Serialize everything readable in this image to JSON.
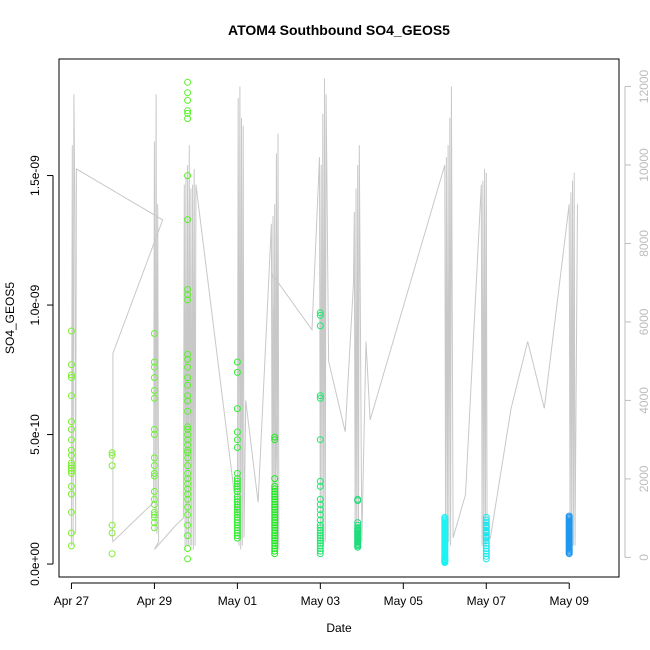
{
  "chart_data": {
    "type": "scatter",
    "title": "ATOM4 Southbound SO4_GEOS5",
    "xlabel": "Date",
    "ylabel": "SO4_GEOS5",
    "x_range_days": [
      -0.3,
      13.2
    ],
    "ylim": [
      -5e-11,
      1.95e-09
    ],
    "y2lim": [
      -500,
      12700
    ],
    "x_ticks": [
      {
        "day": 0,
        "label": "Apr 27"
      },
      {
        "day": 2,
        "label": "Apr 29"
      },
      {
        "day": 4,
        "label": "May 01"
      },
      {
        "day": 6,
        "label": "May 03"
      },
      {
        "day": 8,
        "label": "May 05"
      },
      {
        "day": 10,
        "label": "May 07"
      },
      {
        "day": 12,
        "label": "May 09"
      }
    ],
    "y_ticks": [
      {
        "value": 0,
        "label": "0.0e+00"
      },
      {
        "value": 5e-10,
        "label": "5.0e-10"
      },
      {
        "value": 1e-09,
        "label": "1.0e-09"
      },
      {
        "value": 1.5e-09,
        "label": "1.5e-09"
      }
    ],
    "y2_ticks": [
      {
        "value": 0,
        "label": "0"
      },
      {
        "value": 2000,
        "label": "2000"
      },
      {
        "value": 4000,
        "label": "4000"
      },
      {
        "value": 6000,
        "label": "6000"
      },
      {
        "value": 8000,
        "label": "8000"
      },
      {
        "value": 10000,
        "label": "10000"
      },
      {
        "value": 12000,
        "label": "12000"
      }
    ],
    "altitude_series": {
      "name": "Altitude",
      "color": "#c8c8c8",
      "x_days": [
        0.0,
        0.02,
        0.04,
        0.06,
        0.08,
        0.1,
        0.12,
        2.2,
        1.0,
        1.0,
        1.0,
        0.98,
        1.0,
        1.98,
        2.0,
        2.02,
        2.04,
        2.06,
        2.08,
        2.1,
        2.1,
        2.0,
        2.5,
        2.7,
        2.72,
        2.74,
        2.76,
        2.78,
        2.8,
        2.82,
        2.84,
        2.86,
        2.88,
        2.9,
        2.92,
        2.94,
        2.96,
        2.98,
        3.0,
        4.0,
        4.02,
        4.04,
        4.06,
        4.08,
        4.1,
        4.12,
        4.14,
        4.16,
        4.2,
        4.5,
        4.82,
        4.84,
        4.86,
        4.88,
        4.9,
        4.92,
        4.94,
        4.96,
        4.98,
        5.0,
        4.85,
        5.8,
        5.98,
        6.0,
        6.02,
        6.04,
        6.06,
        6.08,
        6.1,
        6.12,
        6.14,
        6.2,
        6.6,
        6.8,
        6.82,
        6.84,
        6.86,
        6.88,
        6.9,
        6.92,
        6.94,
        7.0,
        7.1,
        7.2,
        9.0,
        9.02,
        9.04,
        9.06,
        9.08,
        9.1,
        9.12,
        9.14,
        9.16,
        9.2,
        9.5,
        9.88,
        9.9,
        9.92,
        9.94,
        9.96,
        9.98,
        10.0,
        10.02,
        10.1,
        10.6,
        11.0,
        11.4,
        12.0,
        12.02,
        12.04,
        12.06,
        12.08,
        12.1,
        12.12,
        12.14,
        12.2
      ],
      "values": [
        300,
        10500,
        300,
        11800,
        9000,
        600,
        9900,
        8600,
        5200,
        5200,
        800,
        600,
        400,
        1400,
        10600,
        700,
        11800,
        600,
        9000,
        1000,
        400,
        200,
        800,
        1000,
        9500,
        200,
        9700,
        300,
        10000,
        300,
        10500,
        300,
        9400,
        300,
        9500,
        200,
        9900,
        300,
        9500,
        1000,
        11700,
        300,
        12000,
        200,
        11200,
        300,
        11000,
        500,
        4000,
        1400,
        8500,
        200,
        8700,
        300,
        9000,
        250,
        10300,
        300,
        10800,
        200,
        7200,
        5800,
        10200,
        300,
        10000,
        400,
        11300,
        300,
        12200,
        400,
        11800,
        5000,
        3200,
        7000,
        8800,
        300,
        9400,
        300,
        10000,
        300,
        10500,
        400,
        5500,
        3500,
        10000,
        400,
        10200,
        300,
        10500,
        400,
        11200,
        300,
        12000,
        500,
        1600,
        9500,
        300,
        9600,
        300,
        9900,
        300,
        9800,
        400,
        500,
        3800,
        5500,
        3800,
        9000,
        300,
        9300,
        400,
        9600,
        300,
        9800,
        300,
        9000
      ]
    },
    "so4_series": {
      "name": "SO4_GEOS5",
      "marker": "open-circle",
      "groups": [
        {
          "color": "#7eef33",
          "x_days": [
            0.0,
            0.0,
            0.0,
            0.0,
            0.0,
            0.0,
            0.0,
            0.0,
            0.0,
            0.0,
            0.0,
            0.0,
            0.0,
            0.0,
            0.0,
            0.0,
            0.0,
            0.0,
            0.0,
            0.0
          ],
          "values": [
            9e-10,
            7.7e-10,
            7.3e-10,
            7.2e-10,
            6.5e-10,
            5.5e-10,
            5.2e-10,
            4.8e-10,
            4.4e-10,
            4.2e-10,
            3.9e-10,
            3.8e-10,
            3.7e-10,
            3.6e-10,
            3.5e-10,
            3e-10,
            2.7e-10,
            2e-10,
            1.2e-10,
            7e-11
          ]
        },
        {
          "color": "#7eef33",
          "x_days": [
            0.98,
            0.98,
            0.98,
            0.98,
            0.98,
            0.98
          ],
          "values": [
            4.3e-10,
            4.2e-10,
            3.8e-10,
            1.5e-10,
            1.2e-10,
            4e-11
          ]
        },
        {
          "color": "#6ef03a",
          "x_days": [
            2.0,
            2.0,
            2.0,
            2.0,
            2.0,
            2.0,
            2.0,
            2.0,
            2.0,
            2.0,
            2.0,
            2.0,
            2.0,
            2.0,
            2.0,
            2.0,
            2.0,
            2.0,
            2.0,
            2.0
          ],
          "values": [
            8.9e-10,
            7.8e-10,
            7.6e-10,
            7.2e-10,
            6.7e-10,
            6.4e-10,
            5.2e-10,
            5e-10,
            4.1e-10,
            3.8e-10,
            3.5e-10,
            3.4e-10,
            2.8e-10,
            2.5e-10,
            2.3e-10,
            2e-10,
            1.9e-10,
            1.8e-10,
            1.6e-10,
            1.4e-10
          ]
        },
        {
          "color": "#5cf02e",
          "x_days": [
            2.8,
            2.8,
            2.8,
            2.8,
            2.8,
            2.8,
            2.8,
            2.8,
            2.8,
            2.8,
            2.8,
            2.8,
            2.8,
            2.8,
            2.8,
            2.8,
            2.8,
            2.8,
            2.8,
            2.8,
            2.8,
            2.8,
            2.8,
            2.8,
            2.8,
            2.8,
            2.8,
            2.8,
            2.8,
            2.8,
            2.8,
            2.8,
            2.8,
            2.8,
            2.8,
            2.8,
            2.8,
            2.8,
            2.8,
            2.8
          ],
          "values": [
            1.86e-09,
            1.82e-09,
            1.79e-09,
            1.75e-09,
            1.74e-09,
            1.72e-09,
            1.5e-09,
            1.33e-09,
            1.06e-09,
            1.04e-09,
            1.02e-09,
            8.1e-10,
            7.9e-10,
            7.6e-10,
            7.2e-10,
            6.9e-10,
            6.5e-10,
            6.3e-10,
            5.9e-10,
            5.3e-10,
            5.2e-10,
            5e-10,
            4.8e-10,
            4.6e-10,
            4.4e-10,
            4.3e-10,
            4.1e-10,
            3.8e-10,
            3.5e-10,
            3.3e-10,
            3.1e-10,
            2.9e-10,
            2.7e-10,
            2.5e-10,
            2.2e-10,
            1.9e-10,
            1.5e-10,
            1.1e-10,
            6e-11,
            2e-11
          ]
        },
        {
          "color": "#33ee33",
          "x_days": [
            4.0,
            4.0,
            4.0,
            4.0,
            4.0,
            4.0,
            4.0,
            4.0,
            4.0,
            4.0,
            4.0,
            4.0,
            4.0,
            4.0,
            4.0,
            4.0,
            4.0,
            4.0,
            4.0,
            4.0,
            4.0,
            4.0,
            4.0,
            4.0,
            4.0,
            4.0,
            4.0,
            4.0,
            4.0,
            4.0
          ],
          "values": [
            7.8e-10,
            7.4e-10,
            6e-10,
            5.1e-10,
            4.8e-10,
            4.5e-10,
            3.5e-10,
            3.3e-10,
            3.2e-10,
            3.1e-10,
            3e-10,
            2.9e-10,
            2.8e-10,
            2.6e-10,
            2.5e-10,
            2.4e-10,
            2.3e-10,
            2.2e-10,
            2.1e-10,
            2e-10,
            1.9e-10,
            1.8e-10,
            1.7e-10,
            1.6e-10,
            1.5e-10,
            1.4e-10,
            1.3e-10,
            1.2e-10,
            1.1e-10,
            1e-10
          ]
        },
        {
          "color": "#1eea1e",
          "x_days": [
            4.9,
            4.9,
            4.9,
            4.9,
            4.9,
            4.9,
            4.9,
            4.9,
            4.9,
            4.9,
            4.9,
            4.9,
            4.9,
            4.9,
            4.9,
            4.9,
            4.9,
            4.9,
            4.9,
            4.9,
            4.9,
            4.9,
            4.9,
            4.9,
            4.9,
            4.9,
            4.9,
            4.9,
            4.9,
            4.9
          ],
          "values": [
            4.9e-10,
            4.8e-10,
            3.3e-10,
            3e-10,
            2.9e-10,
            2.8e-10,
            2.7e-10,
            2.6e-10,
            2.5e-10,
            2.4e-10,
            2.3e-10,
            2.2e-10,
            2.1e-10,
            2e-10,
            1.9e-10,
            1.8e-10,
            1.7e-10,
            1.6e-10,
            1.5e-10,
            1.4e-10,
            1.3e-10,
            1.2e-10,
            1.1e-10,
            1e-10,
            9e-11,
            8e-11,
            7e-11,
            6e-11,
            5e-11,
            4e-11
          ]
        },
        {
          "color": "#1ee86e",
          "x_days": [
            6.0,
            6.0,
            6.0,
            6.0,
            6.0,
            6.0,
            6.0,
            6.0,
            6.0,
            6.0,
            6.0,
            6.0,
            6.0,
            6.0,
            6.0,
            6.0,
            6.0,
            6.0,
            6.0,
            6.0,
            6.0,
            6.0,
            6.0,
            6.0,
            6.0
          ],
          "values": [
            9.7e-10,
            9.6e-10,
            9.2e-10,
            6.5e-10,
            6.4e-10,
            4.8e-10,
            3.2e-10,
            3e-10,
            2.5e-10,
            2.3e-10,
            2.1e-10,
            1.9e-10,
            1.7e-10,
            1.5e-10,
            1.4e-10,
            1.3e-10,
            1.2e-10,
            1.1e-10,
            1e-10,
            9e-11,
            8e-11,
            7e-11,
            6e-11,
            5e-11,
            4e-11
          ]
        },
        {
          "color": "#1edc7c",
          "x_days": [
            6.9,
            6.9,
            6.9,
            6.9,
            6.9,
            6.9,
            6.9,
            6.9,
            6.9,
            6.9,
            6.9,
            6.9,
            6.9,
            6.9,
            6.9,
            6.9,
            6.9,
            6.9,
            6.9,
            6.9
          ],
          "values": [
            2.5e-10,
            2.45e-10,
            1.6e-10,
            1.5e-10,
            1.4e-10,
            1.35e-10,
            1.3e-10,
            1.25e-10,
            1.2e-10,
            1.15e-10,
            1.1e-10,
            1.05e-10,
            1e-10,
            9.5e-11,
            9e-11,
            8.5e-11,
            8e-11,
            7.5e-11,
            7e-11,
            6.5e-11
          ]
        },
        {
          "color": "#1ef2f2",
          "x_days": [
            9.0,
            9.0,
            9.0,
            9.0,
            9.0,
            9.0,
            9.0,
            9.0,
            9.0,
            9.0,
            9.0,
            9.0,
            9.0,
            9.0,
            9.0,
            9.0,
            9.0,
            9.0,
            9.0,
            9.0,
            9.0,
            9.0,
            9.0,
            9.0,
            9.0,
            9.0,
            9.0,
            9.0,
            9.0,
            9.0,
            9.0,
            9.0,
            9.0,
            9.0,
            9.0,
            9.0,
            9.0,
            9.0,
            9.0,
            9.0
          ],
          "values": [
            1.8e-10,
            1.75e-10,
            1.7e-10,
            1.65e-10,
            1.6e-10,
            1.55e-10,
            1.5e-10,
            1.45e-10,
            1.4e-10,
            1.35e-10,
            1.3e-10,
            1.25e-10,
            1.2e-10,
            1.15e-10,
            1.1e-10,
            1.05e-10,
            1e-10,
            9.5e-11,
            9e-11,
            8.5e-11,
            8e-11,
            7.5e-11,
            7e-11,
            6.5e-11,
            6e-11,
            5.5e-11,
            5e-11,
            4.5e-11,
            4e-11,
            3.5e-11,
            3e-11,
            2.5e-11,
            2e-11,
            1.8e-11,
            1.6e-11,
            1.4e-11,
            1.2e-11,
            1e-11,
            8e-12,
            6e-12
          ]
        },
        {
          "color": "#1ee6ee",
          "x_days": [
            10.0,
            10.0,
            10.0,
            10.0,
            10.0,
            10.0,
            10.0,
            10.0,
            10.0,
            10.0,
            10.0,
            10.0,
            10.0,
            10.0,
            10.0,
            10.0,
            10.0,
            10.0,
            10.0,
            10.0
          ],
          "values": [
            1.8e-10,
            1.7e-10,
            1.6e-10,
            1.5e-10,
            1.45e-10,
            1.4e-10,
            1.3e-10,
            1.25e-10,
            1.2e-10,
            1.1e-10,
            1.05e-10,
            1e-10,
            9e-11,
            8e-11,
            7e-11,
            6e-11,
            5e-11,
            4e-11,
            3e-11,
            2e-11
          ]
        },
        {
          "color": "#1e96ee",
          "x_days": [
            12.0,
            12.0,
            12.0,
            12.0,
            12.0,
            12.0,
            12.0,
            12.0,
            12.0,
            12.0,
            12.0,
            12.0,
            12.0,
            12.0,
            12.0,
            12.0,
            12.0,
            12.0,
            12.0,
            12.0,
            12.0,
            12.0,
            12.0,
            12.0,
            12.0,
            12.0,
            12.0,
            12.0,
            12.0,
            12.0
          ],
          "values": [
            1.85e-10,
            1.8e-10,
            1.75e-10,
            1.7e-10,
            1.65e-10,
            1.6e-10,
            1.55e-10,
            1.5e-10,
            1.45e-10,
            1.4e-10,
            1.35e-10,
            1.3e-10,
            1.25e-10,
            1.2e-10,
            1.15e-10,
            1.1e-10,
            1.05e-10,
            1e-10,
            9.5e-11,
            9e-11,
            8.5e-11,
            8e-11,
            7.5e-11,
            7e-11,
            6.5e-11,
            6e-11,
            5.5e-11,
            5e-11,
            4.5e-11,
            4e-11
          ]
        }
      ]
    }
  }
}
